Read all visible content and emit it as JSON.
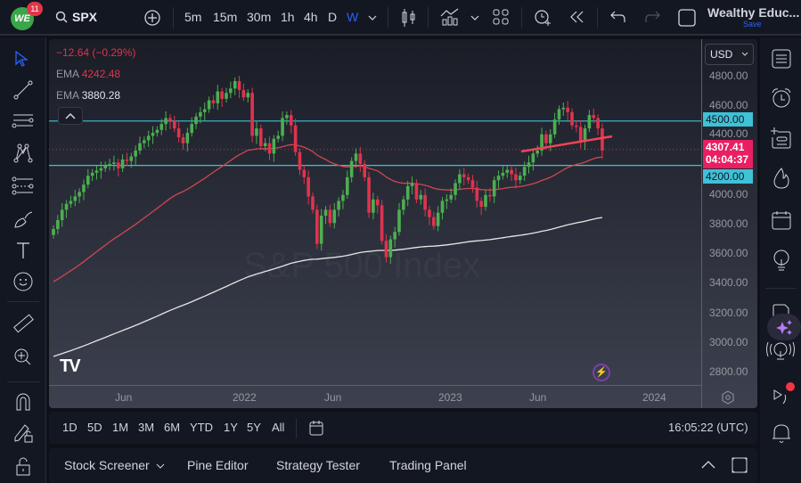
{
  "topbar": {
    "logo_text": "WE",
    "notification_count": "11",
    "symbol": "SPX",
    "intervals": [
      "5m",
      "15m",
      "30m",
      "1h",
      "4h",
      "D",
      "W"
    ],
    "active_interval": "W",
    "account_name": "Wealthy Educ...",
    "save_label": "Save"
  },
  "legend": {
    "change": "−12.64 (−0.29%)",
    "ema1_label": "EMA",
    "ema1_value": "4242.48",
    "ema2_label": "EMA",
    "ema2_value": "3880.28",
    "collapse_icon": "^"
  },
  "watermark": "S&P 500 Index",
  "price_axis": {
    "currency": "USD",
    "ticks": [
      "4800.00",
      "4600.00",
      "4400.00",
      "4000.00",
      "3800.00",
      "3600.00",
      "3400.00",
      "3200.00",
      "3000.00",
      "2800.00"
    ],
    "resistance_label": "4500.00",
    "support_label": "4200.00",
    "last_price": "4307.41",
    "countdown": "04:04:37"
  },
  "time_axis": {
    "ticks": [
      "Jun",
      "2022",
      "Jun",
      "2023",
      "Jun",
      "2024"
    ]
  },
  "range_bar": {
    "ranges": [
      "1D",
      "5D",
      "1M",
      "3M",
      "6M",
      "YTD",
      "1Y",
      "5Y",
      "All"
    ],
    "clock": "16:05:22 (UTC)"
  },
  "bottom_bar": {
    "tabs": [
      "Stock Screener",
      "Pine Editor",
      "Strategy Tester",
      "Trading Panel"
    ]
  },
  "colors": {
    "up": "#4caf50",
    "down": "#e0334e",
    "ema_fast": "#d0464f",
    "ema_slow": "#e6e6e6",
    "hline": "#3fc1d6",
    "trendline": "#f04457",
    "accent": "#2962ff"
  },
  "chart_data": {
    "type": "candlestick",
    "title": "S&P 500 Index (SPX), Weekly",
    "y_range": [
      2700,
      4900
    ],
    "horizontal_lines": [
      4500,
      4200
    ],
    "last_price": 4307.41,
    "ema_fast_last": 4242.48,
    "ema_slow_last": 3880.28,
    "closes": [
      3770,
      3830,
      3900,
      3940,
      3960,
      3990,
      4020,
      4070,
      4130,
      4150,
      4165,
      4180,
      4200,
      4210,
      4220,
      4180,
      4240,
      4230,
      4260,
      4300,
      4350,
      4370,
      4400,
      4420,
      4440,
      4480,
      4520,
      4500,
      4450,
      4390,
      4350,
      4420,
      4480,
      4530,
      4560,
      4580,
      4640,
      4620,
      4700,
      4650,
      4690,
      4720,
      4770,
      4710,
      4660,
      4690,
      4400,
      4450,
      4330,
      4350,
      4280,
      4380,
      4400,
      4520,
      4540,
      4470,
      4290,
      4170,
      4120,
      3990,
      3900,
      3670,
      3860,
      3900,
      3810,
      3900,
      3960,
      4000,
      4120,
      4230,
      4280,
      4210,
      4120,
      3880,
      3970,
      3930,
      3690,
      3580,
      3700,
      3750,
      3900,
      3970,
      4060,
      4080,
      3970,
      4000,
      3900,
      3850,
      3790,
      3880,
      3960,
      3970,
      4000,
      4080,
      4140,
      4120,
      4100,
      4050,
      3960,
      3920,
      4000,
      3990,
      4100,
      4130,
      4150,
      4170,
      4140,
      4100,
      4130,
      4190,
      4220,
      4280,
      4300,
      4410,
      4350,
      4410,
      4510,
      4580,
      4590,
      4560,
      4470,
      4460,
      4360,
      4450,
      4540,
      4520,
      4450,
      4300
    ]
  }
}
